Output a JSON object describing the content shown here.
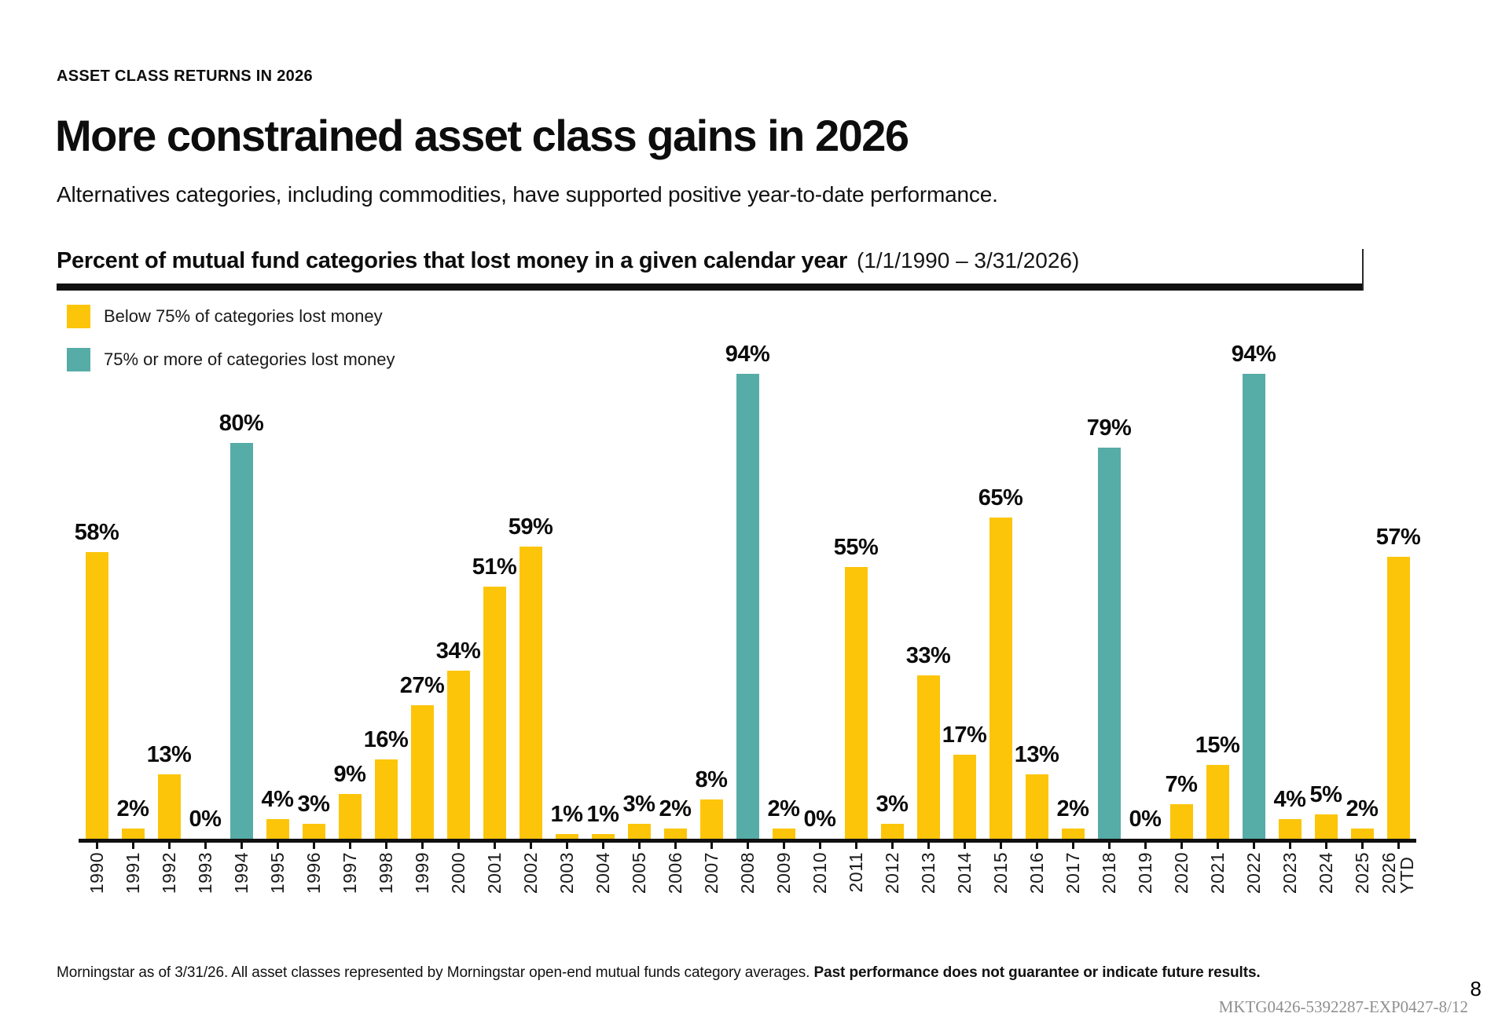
{
  "page": {
    "eyebrow": "ASSET CLASS RETURNS IN 2026",
    "title": "More constrained asset class gains in 2026",
    "subtitle": "Alternatives categories, including commodities, have supported positive year-to-date performance.",
    "page_number": "8",
    "doc_code": "MKTG0426-5392287-EXP0427-8/12"
  },
  "chart_header": {
    "title": "Percent of mutual fund categories that lost money in a given calendar year",
    "date_range": "(1/1/1990 – 3/31/2026)"
  },
  "legend": [
    {
      "label": "Below 75% of categories lost money",
      "color": "#FCC50A"
    },
    {
      "label": "75% or more of categories lost money",
      "color": "#56ACA6"
    }
  ],
  "footnote": {
    "regular": "Morningstar as of 3/31/26. All asset classes represented by Morningstar open-end mutual funds category averages. ",
    "bold": "Past performance does not guarantee or indicate future results."
  },
  "chart_data": {
    "type": "bar",
    "title": "Percent of mutual fund categories that lost money in a given calendar year",
    "subtitle": "(1/1/1990 – 3/31/2026)",
    "unit": "%",
    "categories": [
      "1990",
      "1991",
      "1992",
      "1993",
      "1994",
      "1995",
      "1996",
      "1997",
      "1998",
      "1999",
      "2000",
      "2001",
      "2002",
      "2003",
      "2004",
      "2005",
      "2006",
      "2007",
      "2008",
      "2009",
      "2010",
      "2011",
      "2012",
      "2013",
      "2014",
      "2015",
      "2016",
      "2017",
      "2018",
      "2019",
      "2020",
      "2021",
      "2022",
      "2023",
      "2024",
      "2025",
      "2026 YTD"
    ],
    "values": [
      58,
      2,
      13,
      0,
      80,
      4,
      3,
      9,
      16,
      27,
      34,
      51,
      59,
      1,
      1,
      3,
      2,
      8,
      94,
      2,
      0,
      55,
      3,
      33,
      17,
      65,
      13,
      2,
      79,
      0,
      7,
      15,
      94,
      4,
      5,
      2,
      57
    ],
    "threshold": 75,
    "series_colors": {
      "below_75": "#FCC50A",
      "at_or_above_75": "#56ACA6"
    },
    "ylim": [
      0,
      100
    ],
    "grid": false,
    "data_labels": true,
    "legend_position": "top-left",
    "xlabel": "",
    "ylabel": ""
  }
}
